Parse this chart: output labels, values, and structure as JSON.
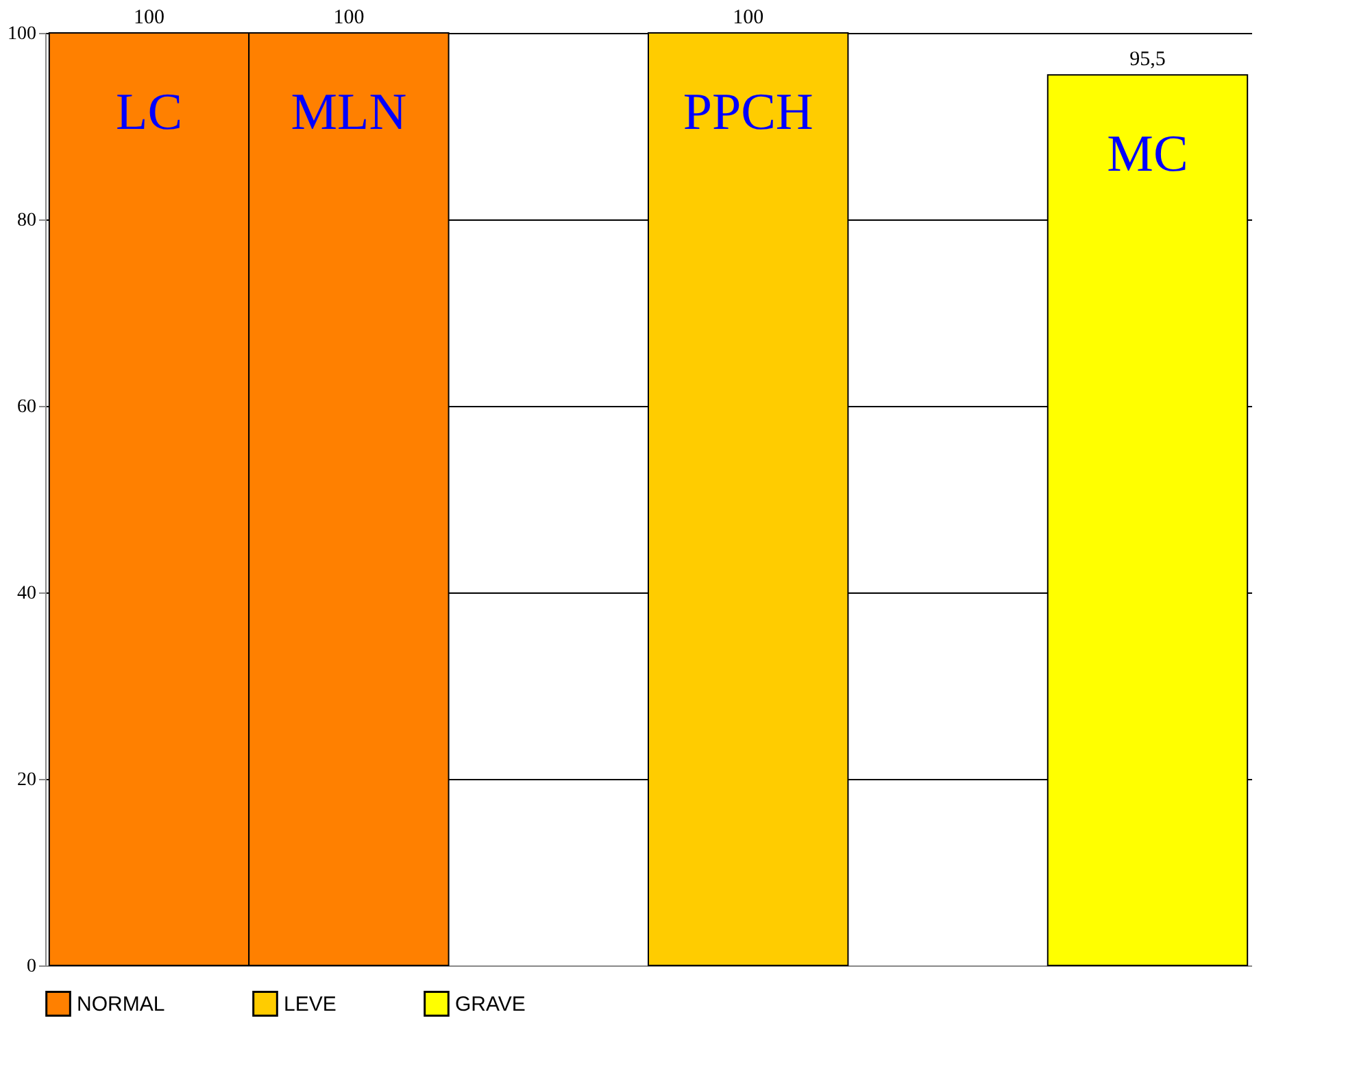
{
  "chart_data": {
    "type": "bar",
    "categories": [
      "LC",
      "MLN",
      null,
      "PPCH",
      null,
      "MC"
    ],
    "series": [
      {
        "name": "NORMAL",
        "color": "#ff8000",
        "values": [
          100,
          100,
          null,
          null,
          null,
          null
        ],
        "value_labels": [
          "100",
          "100",
          null,
          null,
          null,
          null
        ]
      },
      {
        "name": "LEVE",
        "color": "#ffcc00",
        "values": [
          null,
          null,
          null,
          100,
          null,
          null
        ],
        "value_labels": [
          null,
          null,
          null,
          "100",
          null,
          null
        ]
      },
      {
        "name": "GRAVE",
        "color": "#ffff00",
        "values": [
          null,
          null,
          null,
          null,
          null,
          95.5
        ],
        "value_labels": [
          null,
          null,
          null,
          null,
          null,
          "95,5"
        ]
      }
    ],
    "ylim": [
      0,
      100
    ],
    "yticks": [
      0,
      20,
      40,
      60,
      80,
      100
    ],
    "grid": "y",
    "legend": "bottom"
  }
}
